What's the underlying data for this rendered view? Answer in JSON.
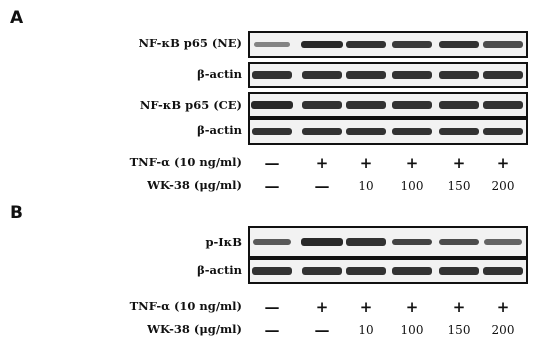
{
  "panel_a": {
    "letter": "A",
    "blots": [
      {
        "label": "NF-κB p65 (NE)",
        "intensities": [
          0.35,
          0.9,
          0.85,
          0.8,
          0.85,
          0.7
        ]
      },
      {
        "label": "β-actin",
        "intensities": [
          0.85,
          0.85,
          0.85,
          0.85,
          0.85,
          0.85
        ]
      },
      {
        "label": "NF-κB p65 (CE)",
        "intensities": [
          0.9,
          0.85,
          0.85,
          0.85,
          0.85,
          0.85
        ]
      },
      {
        "label": "β-actin",
        "intensities": [
          0.85,
          0.85,
          0.85,
          0.85,
          0.85,
          0.85
        ]
      }
    ],
    "conditions": [
      {
        "label": "TNF-α (10 ng/ml)",
        "values": [
          "—",
          "+",
          "+",
          "+",
          "+",
          "+"
        ]
      },
      {
        "label": "WK-38 (μg/ml)",
        "values": [
          "—",
          "—",
          "10",
          "100",
          "150",
          "200"
        ]
      }
    ]
  },
  "panel_b": {
    "letter": "B",
    "blots": [
      {
        "label": "p-IκB",
        "intensities": [
          0.6,
          0.9,
          0.85,
          0.75,
          0.7,
          0.55
        ]
      },
      {
        "label": "β-actin",
        "intensities": [
          0.85,
          0.85,
          0.85,
          0.85,
          0.85,
          0.85
        ]
      }
    ],
    "conditions": [
      {
        "label": "TNF-α (10 ng/ml)",
        "values": [
          "—",
          "+",
          "+",
          "+",
          "+",
          "+"
        ]
      },
      {
        "label": "WK-38 (μg/ml)",
        "values": [
          "—",
          "—",
          "10",
          "100",
          "150",
          "200"
        ]
      }
    ]
  }
}
